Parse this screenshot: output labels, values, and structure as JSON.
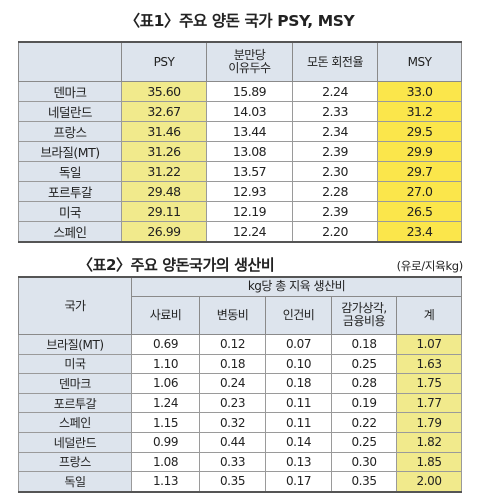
{
  "table1": {
    "title": "〈표1〉주요 양돈 국가 PSY, MSY",
    "headers": {
      "psy": "PSY",
      "weaned": "분만당\n이유두수",
      "turnover": "모돈 회전율",
      "msy": "MSY"
    },
    "rows": [
      {
        "country": "덴마크",
        "psy": "35.60",
        "weaned": "15.89",
        "turnover": "2.24",
        "msy": "33.0"
      },
      {
        "country": "네덜란드",
        "psy": "32.67",
        "weaned": "14.03",
        "turnover": "2.33",
        "msy": "31.2"
      },
      {
        "country": "프랑스",
        "psy": "31.46",
        "weaned": "13.44",
        "turnover": "2.34",
        "msy": "29.5"
      },
      {
        "country": "브라질(MT)",
        "psy": "31.26",
        "weaned": "13.08",
        "turnover": "2.39",
        "msy": "29.9"
      },
      {
        "country": "독일",
        "psy": "31.22",
        "weaned": "13.57",
        "turnover": "2.30",
        "msy": "29.7"
      },
      {
        "country": "포르투갈",
        "psy": "29.48",
        "weaned": "12.93",
        "turnover": "2.28",
        "msy": "27.0"
      },
      {
        "country": "미국",
        "psy": "29.11",
        "weaned": "12.19",
        "turnover": "2.39",
        "msy": "26.5"
      },
      {
        "country": "스페인",
        "psy": "26.99",
        "weaned": "12.24",
        "turnover": "2.20",
        "msy": "23.4"
      }
    ]
  },
  "table2": {
    "title": "〈표2〉주요 양돈국가의 생산비",
    "unit": "(유로/지육kg)",
    "headers": {
      "country": "국가",
      "group": "kg당 총 지육 생산비",
      "feed": "사료비",
      "variable": "변동비",
      "labor": "인건비",
      "depreciation": "감가상각,\n금융비용",
      "total": "계"
    },
    "rows": [
      {
        "country": "브라질(MT)",
        "feed": "0.69",
        "variable": "0.12",
        "labor": "0.07",
        "depreciation": "0.18",
        "total": "1.07"
      },
      {
        "country": "미국",
        "feed": "1.10",
        "variable": "0.18",
        "labor": "0.10",
        "depreciation": "0.25",
        "total": "1.63"
      },
      {
        "country": "덴마크",
        "feed": "1.06",
        "variable": "0.24",
        "labor": "0.18",
        "depreciation": "0.28",
        "total": "1.75"
      },
      {
        "country": "포르투갈",
        "feed": "1.24",
        "variable": "0.23",
        "labor": "0.11",
        "depreciation": "0.19",
        "total": "1.77"
      },
      {
        "country": "스페인",
        "feed": "1.15",
        "variable": "0.32",
        "labor": "0.11",
        "depreciation": "0.22",
        "total": "1.79"
      },
      {
        "country": "네덜란드",
        "feed": "0.99",
        "variable": "0.44",
        "labor": "0.14",
        "depreciation": "0.25",
        "total": "1.82"
      },
      {
        "country": "프랑스",
        "feed": "1.08",
        "variable": "0.33",
        "labor": "0.13",
        "depreciation": "0.30",
        "total": "1.85"
      },
      {
        "country": "독일",
        "feed": "1.13",
        "variable": "0.35",
        "labor": "0.17",
        "depreciation": "0.35",
        "total": "2.00"
      }
    ]
  },
  "colors": {
    "header_bg": "#dde4ed",
    "psy_bg": "#f1ea8c",
    "msy_bg": "#fbe64b",
    "total_bg": "#f1ea8c"
  }
}
